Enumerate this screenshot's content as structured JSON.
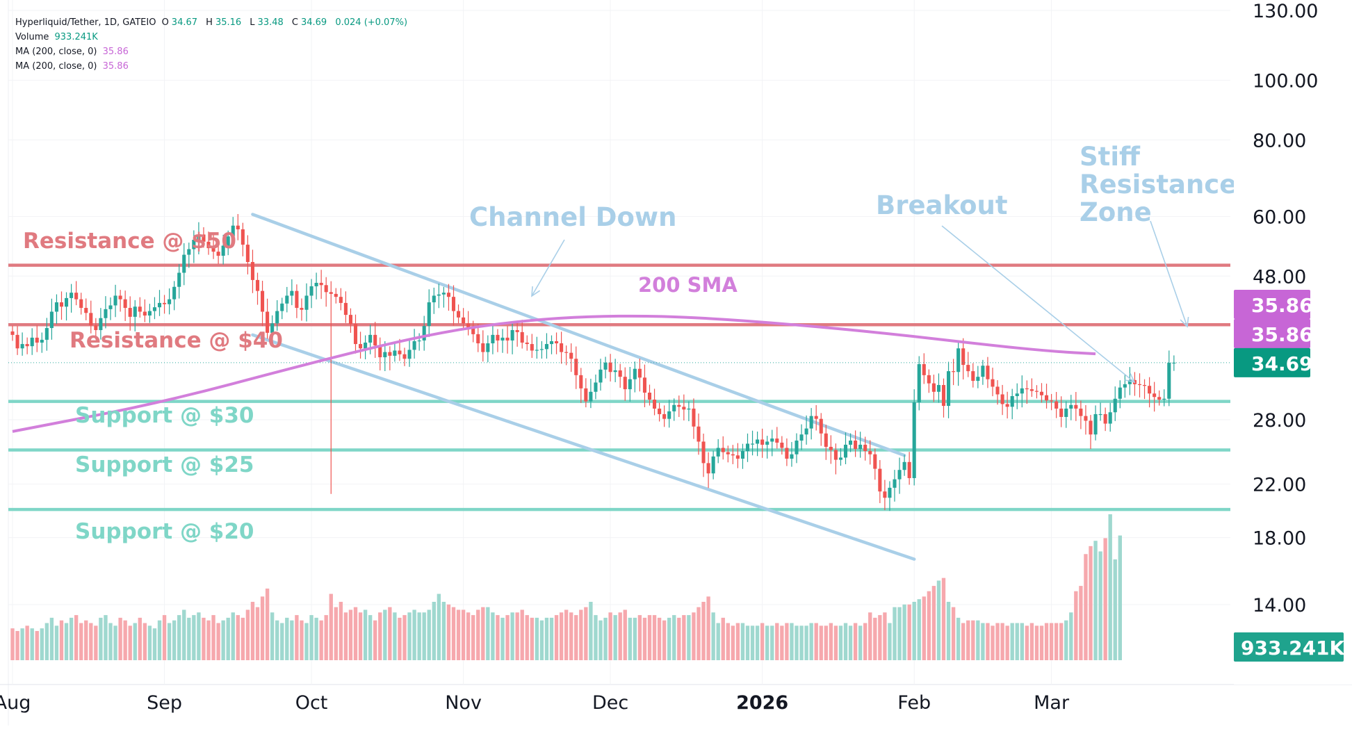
{
  "legend": {
    "symbol": "Hyperliquid/Tether, 1D, GATEIO",
    "o_label": "O",
    "o": "34.67",
    "h_label": "H",
    "h": "35.16",
    "l_label": "L",
    "l": "33.48",
    "c_label": "C",
    "c": "34.69",
    "change": "0.024 (+0.07%)",
    "volume_label": "Volume",
    "volume": "933.241K",
    "ma1_label": "MA (200, close, 0)",
    "ma1": "35.86",
    "ma2_label": "MA (200, close, 0)",
    "ma2": "35.86"
  },
  "colors": {
    "up": "#26a69a",
    "down": "#ef5350",
    "vol_up": "#9fd8cf",
    "vol_down": "#f6a8ad",
    "resistance": "#e07a80",
    "support": "#7fd6c7",
    "channel": "#a9cfe8",
    "sma": "#d27fdb",
    "annotation": "#a9cfe8"
  },
  "chart_data": {
    "type": "candlestick",
    "title": "Hyperliquid/Tether, 1D, GATEIO",
    "y_scale": "log",
    "y_ticks": [
      "130.00",
      "100.00",
      "80.00",
      "60.00",
      "48.00",
      "28.00",
      "22.00",
      "18.00",
      "14.00"
    ],
    "x_ticks": [
      {
        "label": "Aug",
        "index": 0
      },
      {
        "label": "Sep",
        "index": 31
      },
      {
        "label": "Oct",
        "index": 61
      },
      {
        "label": "Nov",
        "index": 92
      },
      {
        "label": "Dec",
        "index": 122
      },
      {
        "label": "2026",
        "index": 153,
        "bold": true
      },
      {
        "label": "Feb",
        "index": 184
      },
      {
        "label": "Mar",
        "index": 212
      }
    ],
    "start_date": "2025-07-30",
    "closes": [
      38.5,
      36.6,
      37.2,
      36.9,
      38.1,
      37.4,
      37.8,
      39.5,
      42,
      43.5,
      42.8,
      44.2,
      45.1,
      44,
      42.6,
      41.8,
      39.9,
      39.2,
      41,
      42.4,
      43,
      44.6,
      44,
      42.6,
      41.2,
      42.8,
      42,
      41.4,
      42.1,
      42.7,
      43.4,
      43.2,
      44,
      46.1,
      48.6,
      52,
      53.1,
      55,
      56.1,
      54.6,
      53.3,
      52.6,
      51.8,
      53.8,
      55.7,
      58,
      57.2,
      54,
      50.6,
      47.3,
      45.4,
      42,
      38.8,
      40.2,
      42.1,
      43.3,
      44.6,
      45.4,
      42.6,
      42.3,
      44.6,
      46.2,
      46.8,
      46.4,
      45.2,
      44.9,
      44.4,
      43.4,
      41.5,
      40.1,
      37.2,
      36.6,
      37.4,
      38.5,
      37,
      35.4,
      36.1,
      35.6,
      36.3,
      35.8,
      35.2,
      36.4,
      37.6,
      37.7,
      39.8,
      43.5,
      44.6,
      44.8,
      45.1,
      44.4,
      42.1,
      41.1,
      40.2,
      39.5,
      38.6,
      37.3,
      36.1,
      37.3,
      38.5,
      37.7,
      38.1,
      37.7,
      39.2,
      38.9,
      37.4,
      37.2,
      36.3,
      36.4,
      36.5,
      37.2,
      37.6,
      37.3,
      36.1,
      36,
      35.2,
      33.1,
      31.5,
      30,
      31.1,
      32.2,
      33.8,
      34.7,
      33.5,
      33.7,
      32.9,
      31.4,
      32.6,
      33.9,
      32.8,
      31,
      30.2,
      29.2,
      28.6,
      28.1,
      28.9,
      29.6,
      29.4,
      29.1,
      29.2,
      27.3,
      25.8,
      23.8,
      22.9,
      24.4,
      25.2,
      24.8,
      24.6,
      24.5,
      24.2,
      24.9,
      25.6,
      25.6,
      26,
      25.5,
      25.8,
      26.1,
      25.7,
      25.2,
      24.2,
      24.6,
      25.9,
      26.5,
      27.1,
      28.4,
      28.1,
      26.6,
      25.3,
      25,
      24.1,
      24.3,
      25.5,
      25.9,
      25.1,
      25.5,
      24.9,
      24.6,
      23.3,
      21.4,
      20.9,
      21.7,
      22.4,
      23.2,
      23.9,
      22.5,
      29.9,
      34.5,
      33.1,
      32.1,
      31.1,
      31.9,
      29.5,
      33.6,
      33.5,
      36.6,
      34.4,
      33.6,
      32.4,
      32.9,
      34.3,
      32.6,
      31.7,
      30.8,
      29.7,
      29.4,
      30.6,
      30.9,
      31.5,
      31.4,
      31.2,
      31.1,
      30.7,
      30.1,
      30,
      29.2,
      28.3,
      29.2,
      29.6,
      29.2,
      28.4,
      27.9,
      26.5,
      28.6,
      28.6,
      27.6,
      28.8,
      30.3,
      31.6,
      32,
      32.5,
      32,
      31.9,
      31.8,
      30.9,
      30.5,
      30.2,
      30.3,
      34.67,
      34.69
    ],
    "opens": [
      39,
      38.5,
      36.6,
      37.2,
      36.9,
      38.1,
      37.4,
      37.8,
      39.5,
      42,
      43.5,
      42.8,
      44.2,
      45.1,
      44,
      42.6,
      41.8,
      39.9,
      39.2,
      41,
      42.4,
      43,
      44.6,
      44,
      42.6,
      41.2,
      42.8,
      42,
      41.4,
      42.1,
      42.7,
      43.4,
      43.2,
      44,
      46.1,
      48.6,
      52,
      53.1,
      55,
      56.1,
      54.6,
      53.3,
      52.6,
      51.8,
      53.8,
      55.7,
      58,
      57.2,
      54,
      50.6,
      47.3,
      45.4,
      42,
      38.8,
      40.2,
      42.1,
      43.3,
      44.6,
      45.4,
      42.6,
      42.3,
      44.6,
      46.2,
      46.8,
      46.4,
      45.2,
      44.9,
      44.4,
      43.4,
      41.5,
      40.1,
      37.2,
      36.6,
      37.4,
      38.5,
      37,
      35.4,
      36.1,
      35.6,
      36.3,
      35.8,
      35.2,
      36.4,
      37.6,
      37.7,
      39.8,
      43.5,
      44.6,
      44.8,
      45.1,
      44.4,
      42.1,
      41.1,
      40.2,
      39.5,
      38.6,
      37.3,
      36.1,
      37.3,
      38.5,
      37.7,
      38.1,
      37.7,
      39.2,
      38.9,
      37.4,
      37.2,
      36.3,
      36.4,
      36.5,
      37.2,
      37.6,
      37.3,
      36.1,
      36,
      35.2,
      33.1,
      31.5,
      30,
      31.1,
      32.2,
      33.8,
      34.7,
      33.5,
      33.7,
      32.9,
      31.4,
      32.6,
      33.9,
      32.8,
      31,
      30.2,
      29.2,
      28.6,
      28.1,
      28.9,
      29.6,
      29.4,
      29.1,
      29.2,
      27.3,
      25.8,
      23.8,
      22.9,
      24.4,
      25.2,
      24.8,
      24.6,
      24.5,
      24.2,
      24.9,
      25.6,
      25.6,
      26,
      25.5,
      25.8,
      26.1,
      25.7,
      25.2,
      24.2,
      24.6,
      25.9,
      26.5,
      27.1,
      28.4,
      28.1,
      26.6,
      25.3,
      25,
      24.1,
      24.3,
      25.5,
      25.9,
      25.1,
      25.5,
      24.9,
      24.6,
      23.3,
      21.4,
      20.9,
      21.7,
      22.4,
      23.2,
      23.9,
      22.5,
      29.9,
      34.5,
      33.1,
      32.1,
      31.1,
      31.9,
      29.5,
      33.6,
      33.5,
      36.6,
      34.4,
      33.6,
      32.4,
      32.9,
      34.3,
      32.6,
      31.7,
      30.8,
      29.7,
      29.4,
      30.6,
      30.9,
      31.5,
      31.4,
      31.2,
      31.1,
      30.7,
      30.1,
      30,
      29.2,
      28.3,
      29.2,
      29.6,
      29.2,
      28.4,
      27.9,
      26.5,
      28.6,
      28.6,
      27.6,
      28.8,
      30.3,
      31.6,
      32,
      32.5,
      32,
      31.9,
      31.8,
      30.9,
      30.5,
      30.2,
      30.3,
      34.67
    ],
    "wick_overrides": [
      {
        "index": 65,
        "low": 21.2
      }
    ],
    "volumes": [
      12,
      11,
      12,
      13,
      12,
      11,
      12,
      14,
      16,
      13,
      15,
      14,
      16,
      17,
      14,
      15,
      14,
      13,
      16,
      17,
      14,
      13,
      16,
      15,
      13,
      14,
      16,
      14,
      13,
      12,
      15,
      17,
      14,
      15,
      17,
      19,
      16,
      17,
      18,
      16,
      15,
      17,
      14,
      15,
      16,
      18,
      17,
      16,
      19,
      22,
      20,
      24,
      27,
      18,
      15,
      14,
      16,
      15,
      17,
      15,
      14,
      17,
      16,
      15,
      17,
      25,
      20,
      22,
      18,
      19,
      20,
      18,
      19,
      17,
      15,
      18,
      19,
      20,
      18,
      16,
      17,
      18,
      19,
      18,
      18,
      19,
      22,
      25,
      22,
      21,
      20,
      19,
      19,
      18,
      17,
      19,
      20,
      20,
      18,
      17,
      16,
      17,
      18,
      18,
      19,
      17,
      16,
      16,
      15,
      16,
      16,
      17,
      18,
      19,
      18,
      17,
      19,
      20,
      22,
      17,
      15,
      16,
      18,
      17,
      18,
      19,
      16,
      16,
      17,
      16,
      17,
      17,
      16,
      15,
      16,
      17,
      16,
      17,
      17,
      18,
      20,
      22,
      24,
      18,
      14,
      16,
      14,
      13,
      14,
      14,
      13,
      13,
      13,
      14,
      13,
      13,
      14,
      13,
      14,
      14,
      13,
      13,
      13,
      14,
      14,
      13,
      13,
      14,
      13,
      13,
      14,
      13,
      14,
      13,
      14,
      18,
      16,
      17,
      18,
      14,
      20,
      20,
      21,
      21,
      22,
      23,
      24,
      26,
      28,
      30,
      31,
      22,
      20,
      16,
      14,
      15,
      15,
      15,
      14,
      14,
      13,
      14,
      14,
      13,
      14,
      14,
      14,
      13,
      14,
      13,
      13,
      14,
      14,
      14,
      14,
      15,
      18,
      26,
      28,
      40,
      43,
      45,
      41,
      46,
      55,
      38,
      47
    ],
    "sma_200_points": [
      [
        0,
        26.8
      ],
      [
        30,
        29.8
      ],
      [
        60,
        34.5
      ],
      [
        80,
        37.8
      ],
      [
        95,
        39.8
      ],
      [
        110,
        41.0
      ],
      [
        125,
        41.4
      ],
      [
        140,
        41.1
      ],
      [
        160,
        40.0
      ],
      [
        180,
        38.6
      ],
      [
        200,
        37.0
      ],
      [
        212,
        36.2
      ],
      [
        221,
        35.86
      ]
    ],
    "sma_200_last": 35.86,
    "last_price": 34.69,
    "last_volume": "933.241K",
    "price_labels": [
      "35.86",
      "35.86",
      "34.69"
    ],
    "horizontal_levels": [
      {
        "name": "resistance-50",
        "label": "Resistance @ $50",
        "price": 50
      },
      {
        "name": "resistance-40",
        "label": "Resistance @ $40",
        "price": 40
      },
      {
        "name": "support-30",
        "label": "Support @ $30",
        "price": 30
      },
      {
        "name": "support-25",
        "label": "Support @ $25",
        "price": 25
      },
      {
        "name": "support-20",
        "label": "Support @ $20",
        "price": 20
      }
    ],
    "channel_lines": [
      {
        "from": [
          49,
          60.5
        ],
        "to": [
          182,
          24.5
        ]
      },
      {
        "from": [
          49,
          38.5
        ],
        "to": [
          184,
          16.6
        ]
      }
    ],
    "annotations": [
      {
        "name": "channel-down",
        "text": "Channel Down"
      },
      {
        "name": "breakout",
        "text": "Breakout"
      },
      {
        "name": "stiff-resistance-zone",
        "lines": [
          "Stiff",
          "Resistance",
          "Zone"
        ]
      },
      {
        "name": "sma-label",
        "text": "200 SMA"
      }
    ]
  }
}
